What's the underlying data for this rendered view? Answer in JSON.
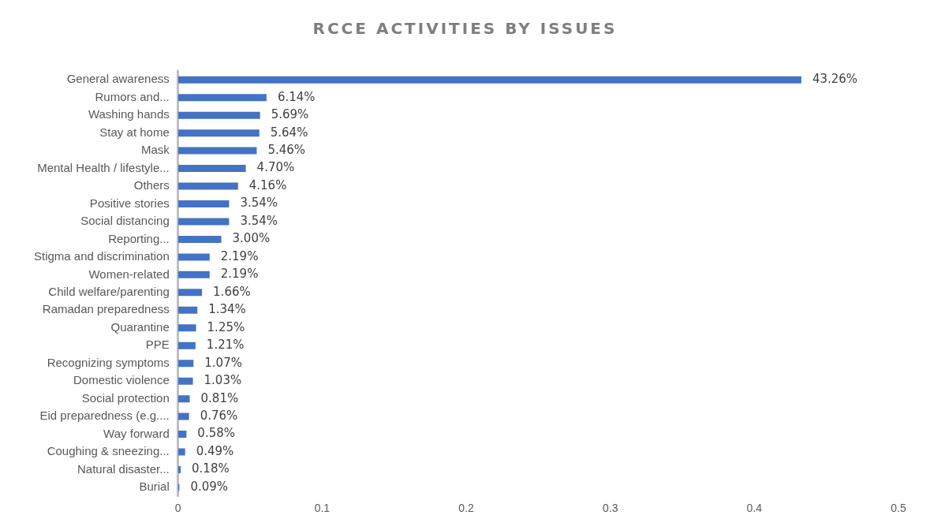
{
  "chart_data": {
    "type": "bar",
    "orientation": "horizontal",
    "title": "RCCE ACTIVITIES BY ISSUES",
    "categories": [
      "General awareness",
      "Rumors and...",
      "Washing hands",
      "Stay at home",
      "Mask",
      "Mental Health / lifestyle...",
      "Others",
      "Positive stories",
      "Social distancing",
      "Reporting...",
      "Stigma and discrimination",
      "Women-related",
      "Child welfare/parenting",
      "Ramadan preparedness",
      "Quarantine",
      "PPE",
      "Recognizing symptoms",
      "Domestic violence",
      "Social protection",
      "Eid preparedness (e.g....",
      "Way forward",
      "Coughing & sneezing...",
      "Natural disaster...",
      "Burial"
    ],
    "values": [
      0.4326,
      0.0614,
      0.0569,
      0.0564,
      0.0546,
      0.047,
      0.0416,
      0.0354,
      0.0354,
      0.03,
      0.0219,
      0.0219,
      0.0166,
      0.0134,
      0.0125,
      0.0121,
      0.0107,
      0.0103,
      0.0081,
      0.0076,
      0.0058,
      0.0049,
      0.0018,
      0.0009
    ],
    "value_labels": [
      "43.26%",
      "6.14%",
      "5.69%",
      "5.64%",
      "5.46%",
      "4.70%",
      "4.16%",
      "3.54%",
      "3.54%",
      "3.00%",
      "2.19%",
      "2.19%",
      "1.66%",
      "1.34%",
      "1.25%",
      "1.21%",
      "1.07%",
      "1.03%",
      "0.81%",
      "0.76%",
      "0.58%",
      "0.49%",
      "0.18%",
      "0.09%"
    ],
    "color": "#4472c4",
    "xlim": [
      0,
      0.5
    ],
    "xticks": [
      0,
      0.1,
      0.2,
      0.3,
      0.4,
      0.5
    ],
    "grid": false,
    "legend": false
  }
}
